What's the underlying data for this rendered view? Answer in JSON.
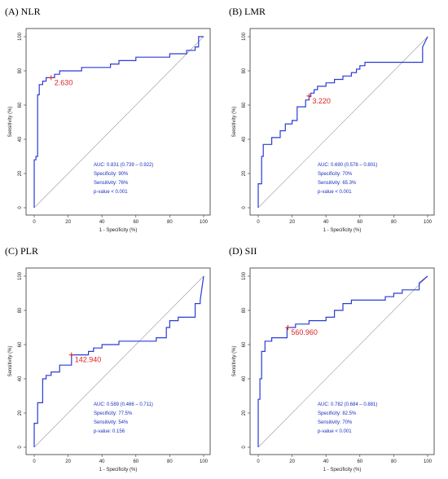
{
  "chart_data": [
    {
      "type": "line",
      "title": "(A) NLR",
      "xlabel": "1 - Specificity (%)",
      "ylabel": "Sensitivity (%)",
      "xlim": [
        0,
        100
      ],
      "ylim": [
        0,
        100
      ],
      "ticks": [
        "0",
        "20",
        "40",
        "60",
        "80",
        "100"
      ],
      "cutoff_label": "2.630",
      "cutoff_point": [
        10,
        76
      ],
      "stats": [
        "AUC: 0.831 (0.739 – 0.922)",
        "Specificity: 90%",
        "Sensitivity: 76%",
        "p-value < 0.001"
      ],
      "series": [
        {
          "x": [
            0,
            0,
            1,
            1,
            2,
            2,
            3,
            3,
            5,
            5,
            7,
            7,
            12,
            12,
            15,
            15,
            28,
            28,
            45,
            45,
            50,
            50,
            60,
            60,
            80,
            80,
            90,
            90,
            95,
            95,
            97,
            97,
            100
          ],
          "y": [
            0,
            28,
            28,
            30,
            30,
            66,
            66,
            72,
            72,
            74,
            74,
            76,
            76,
            78,
            78,
            80,
            80,
            82,
            82,
            84,
            84,
            86,
            86,
            88,
            88,
            90,
            90,
            92,
            92,
            94,
            94,
            100,
            100
          ]
        }
      ]
    },
    {
      "type": "line",
      "title": "(B) LMR",
      "xlabel": "1 - Specificity (%)",
      "ylabel": "Sensitivity (%)",
      "xlim": [
        0,
        100
      ],
      "ylim": [
        0,
        100
      ],
      "ticks": [
        "0",
        "20",
        "40",
        "60",
        "80",
        "100"
      ],
      "cutoff_label": "3.220",
      "cutoff_point": [
        30,
        65.3
      ],
      "stats": [
        "AUC: 0.690 (0.578 – 0.801)",
        "Specificity: 70%",
        "Sensitivity: 65.3%",
        "p-value < 0.001"
      ],
      "series": [
        {
          "x": [
            0,
            0,
            2,
            2,
            3,
            3,
            8,
            8,
            13,
            13,
            16,
            16,
            20,
            20,
            23,
            23,
            28,
            28,
            30,
            30,
            31,
            31,
            33,
            33,
            35,
            35,
            40,
            40,
            45,
            45,
            50,
            50,
            55,
            55,
            58,
            58,
            60,
            60,
            63,
            63,
            97,
            97,
            100
          ],
          "y": [
            0,
            14,
            14,
            30,
            30,
            37,
            37,
            41,
            41,
            45,
            45,
            49,
            49,
            51,
            51,
            59,
            59,
            63,
            63,
            65,
            65,
            67,
            67,
            69,
            69,
            71,
            71,
            73,
            73,
            75,
            75,
            77,
            77,
            79,
            79,
            81,
            81,
            83,
            83,
            85,
            85,
            94,
            100
          ]
        }
      ]
    },
    {
      "type": "line",
      "title": "(C) PLR",
      "xlabel": "1 - Specificity (%)",
      "ylabel": "Sensitivity (%)",
      "xlim": [
        0,
        100
      ],
      "ylim": [
        0,
        100
      ],
      "ticks": [
        "0",
        "20",
        "40",
        "60",
        "80",
        "100"
      ],
      "cutoff_label": "142.940",
      "cutoff_point": [
        22,
        54
      ],
      "stats": [
        "AUC: 0.589 (0.466 – 0.711)",
        "Specificity: 77.5%",
        "Sensitivity: 54%",
        "p-value: 0.156"
      ],
      "series": [
        {
          "x": [
            0,
            0,
            2,
            2,
            5,
            5,
            7,
            7,
            10,
            10,
            15,
            15,
            22,
            22,
            32,
            32,
            35,
            35,
            40,
            40,
            50,
            50,
            72,
            72,
            78,
            78,
            80,
            80,
            85,
            85,
            95,
            95,
            98,
            98,
            100
          ],
          "y": [
            0,
            14,
            14,
            26,
            26,
            40,
            40,
            42,
            42,
            44,
            44,
            48,
            48,
            54,
            54,
            56,
            56,
            58,
            58,
            60,
            60,
            62,
            62,
            64,
            64,
            70,
            70,
            74,
            74,
            76,
            76,
            84,
            84,
            86,
            100
          ]
        }
      ]
    },
    {
      "type": "line",
      "title": "(D) SII",
      "xlabel": "1 - Specificity (%)",
      "ylabel": "Sensitivity (%)",
      "xlim": [
        0,
        100
      ],
      "ylim": [
        0,
        100
      ],
      "ticks": [
        "0",
        "20",
        "40",
        "60",
        "80",
        "100"
      ],
      "cutoff_label": "560.960",
      "cutoff_point": [
        17.5,
        70
      ],
      "stats": [
        "AUC: 0.782 (0.684 – 0.881)",
        "Specificity: 82.5%",
        "Sensitivity: 70%",
        "p-value < 0.001"
      ],
      "series": [
        {
          "x": [
            0,
            0,
            1,
            1,
            2,
            2,
            4,
            4,
            8,
            8,
            17,
            17,
            22,
            22,
            30,
            30,
            40,
            40,
            45,
            45,
            50,
            50,
            55,
            55,
            75,
            75,
            80,
            80,
            85,
            85,
            95,
            95,
            100
          ],
          "y": [
            0,
            28,
            28,
            40,
            40,
            56,
            56,
            62,
            62,
            64,
            64,
            70,
            70,
            72,
            72,
            74,
            74,
            76,
            76,
            80,
            80,
            84,
            84,
            86,
            86,
            88,
            88,
            90,
            90,
            92,
            92,
            96,
            100
          ]
        }
      ]
    }
  ]
}
